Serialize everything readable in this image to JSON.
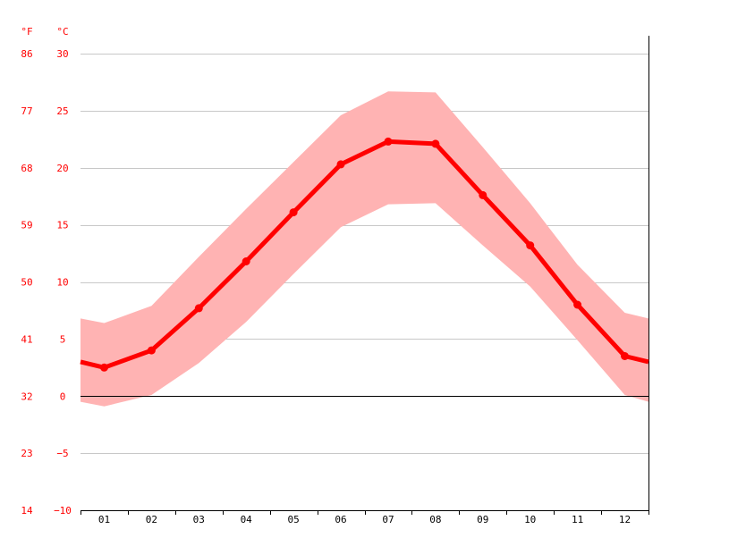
{
  "chart_data": {
    "type": "line",
    "title": "",
    "xlabel": "",
    "ylabel": "",
    "units": {
      "left": "°F",
      "right": "°C"
    },
    "categories": [
      "01",
      "02",
      "03",
      "04",
      "05",
      "06",
      "07",
      "08",
      "09",
      "10",
      "11",
      "12"
    ],
    "x_endpoints": {
      "start": 0.5,
      "end": 12.5
    },
    "ylim": [
      -10,
      30
    ],
    "yticks_c": [
      30,
      25,
      20,
      15,
      10,
      5,
      0,
      -5,
      -10
    ],
    "yticks_c_labels": [
      "30",
      "25",
      "20",
      "15",
      "10",
      "5",
      "0",
      "−5",
      "−10"
    ],
    "yticks_f_labels": [
      "86",
      "77",
      "68",
      "59",
      "50",
      "41",
      "32",
      "23",
      "14"
    ],
    "grid": true,
    "series": [
      {
        "kind": "mean",
        "values": [
          2.5,
          4.0,
          7.7,
          11.8,
          16.1,
          20.3,
          22.3,
          22.1,
          17.6,
          13.2,
          8.0,
          3.5
        ],
        "start_value": 3.0,
        "end_value": 3.0,
        "color": "#ff0000"
      },
      {
        "kind": "max",
        "values": [
          6.4,
          7.9,
          12.2,
          16.4,
          20.5,
          24.6,
          26.7,
          26.6,
          21.8,
          16.9,
          11.5,
          7.3
        ],
        "start_value": 6.8,
        "end_value": 6.8,
        "color": "#ffb3b3"
      },
      {
        "kind": "min",
        "values": [
          -0.9,
          0.1,
          2.9,
          6.5,
          10.7,
          14.8,
          16.8,
          16.9,
          13.2,
          9.6,
          4.9,
          0.1
        ],
        "start_value": -0.5,
        "end_value": -0.5,
        "color": "#ffb3b3"
      }
    ],
    "colors": {
      "line": "#ff0000",
      "band": "#ffb3b3",
      "grid": "#c8c8c8",
      "zero_line": "#000000",
      "axis": "#000000",
      "tick_text_y": "#ff0000",
      "tick_text_x": "#000000"
    }
  }
}
